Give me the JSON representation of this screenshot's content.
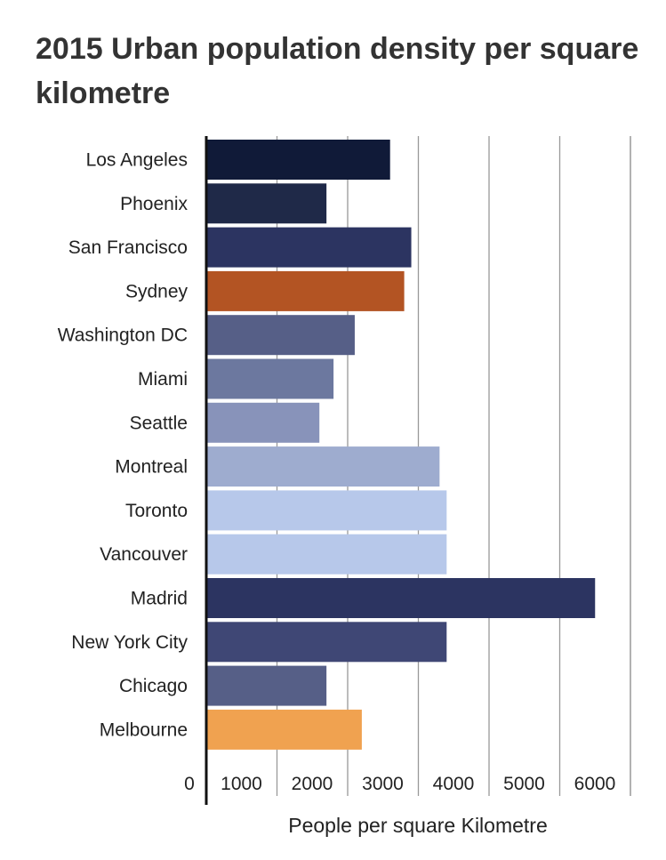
{
  "chart_data": {
    "type": "bar",
    "orientation": "horizontal",
    "title": "2015 Urban population density per square kilometre",
    "xlabel": "People per square Kilometre",
    "ylabel": "",
    "xlim": [
      0,
      6000
    ],
    "xticks": [
      0,
      1000,
      2000,
      3000,
      4000,
      5000,
      6000
    ],
    "grid": true,
    "categories": [
      "Los Angeles",
      "Phoenix",
      "San Francisco",
      "Sydney",
      "Washington DC",
      "Miami",
      "Seattle",
      "Montreal",
      "Toronto",
      "Vancouver",
      "Madrid",
      "New York City",
      "Chicago",
      "Melbourne"
    ],
    "values": [
      2600,
      1700,
      2900,
      2800,
      2100,
      1800,
      1600,
      3300,
      3400,
      3400,
      5500,
      3400,
      1700,
      2200
    ],
    "colors": [
      "#101a38",
      "#1f2948",
      "#2c3461",
      "#b35423",
      "#565f87",
      "#6c789f",
      "#8893ba",
      "#9eaccf",
      "#b7c8ea",
      "#b7c8ea",
      "#2c3461",
      "#3f4775",
      "#565f87",
      "#f0a250"
    ]
  }
}
